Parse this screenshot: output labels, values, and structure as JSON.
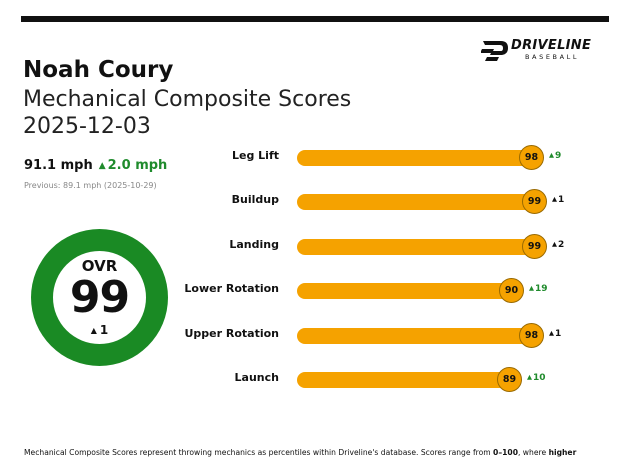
{
  "logo": {
    "word": "DRIVELINE",
    "sub": "BASEBALL"
  },
  "header": {
    "name": "Noah Coury",
    "subtitle": "Mechanical Composite Scores",
    "date": "2025-12-03"
  },
  "velocity": {
    "current": "91.1 mph",
    "delta": "2.0 mph",
    "previous": "Previous: 89.1 mph (2025-10-29)"
  },
  "overall": {
    "label": "OVR",
    "score": "99",
    "delta": "1"
  },
  "chart_data": {
    "type": "bar",
    "orientation": "horizontal",
    "xlim": [
      0,
      100
    ],
    "categories": [
      "Leg Lift",
      "Buildup",
      "Landing",
      "Lower Rotation",
      "Upper Rotation",
      "Launch"
    ],
    "values": [
      98,
      99,
      99,
      90,
      98,
      89
    ],
    "changes": [
      9,
      1,
      2,
      19,
      1,
      10
    ],
    "bar_color": "#f5a200",
    "increase_color": "#1f8b2c"
  },
  "footer": {
    "text_a": "Mechanical Composite Scores represent throwing mechanics as percentiles within Driveline's database. Scores range from ",
    "range": "0–100",
    "text_b": ", where ",
    "emph": "higher"
  },
  "colors": {
    "accent": "#f5a200",
    "ring": "#1a8a24",
    "positive": "#1f8b2c"
  }
}
